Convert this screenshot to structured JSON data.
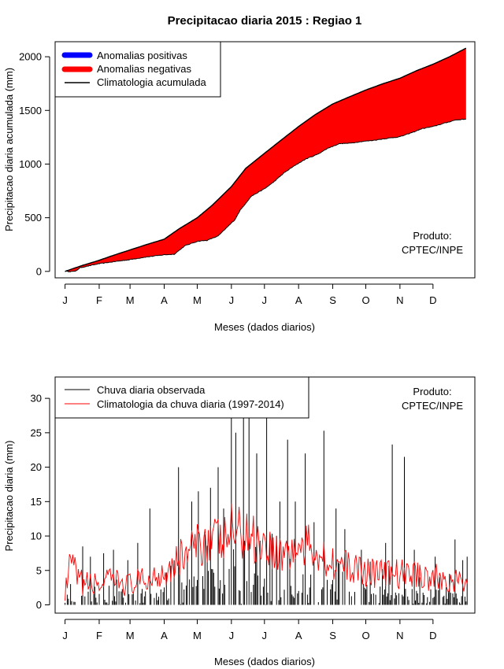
{
  "title": "Precipitacao diaria 2015 : Regiao 1",
  "top": {
    "ylabel": "Precipitacao diaria acumulada (mm)",
    "xlabel": "Meses (dados diarios)",
    "legend": {
      "positive": "Anomalias positivas",
      "negative": "Anomalias negativas",
      "clim": "Climatologia acumulada"
    },
    "credit_line1": "Produto:",
    "credit_line2": "CPTEC/INPE"
  },
  "bottom": {
    "ylabel": "Precipitacao diaria (mm)",
    "xlabel": "Meses (dados diarios)",
    "legend": {
      "obs": "Chuva diaria observada",
      "clim": "Climatologia da chuva diaria (1997-2014)"
    },
    "credit_line1": "Produto:",
    "credit_line2": "CPTEC/INPE"
  },
  "colors": {
    "positive": "#0000ff",
    "negative": "#ff0000",
    "clim_accum": "#000000",
    "obs_bars": "#000000",
    "clim_daily": "#ff0000"
  },
  "chart_data": [
    {
      "type": "area",
      "name": "accumulated",
      "title": "Precipitacao diaria 2015 : Regiao 1",
      "xlabel": "Meses (dados diarios)",
      "ylabel": "Precipitacao diaria acumulada (mm)",
      "x_unit": "day of year",
      "xlim": [
        -8,
        373
      ],
      "ylim": [
        -60,
        2140
      ],
      "yticks": [
        0,
        500,
        1000,
        1500,
        2000
      ],
      "month_ticks": [
        {
          "label": "J",
          "day": 1
        },
        {
          "label": "F",
          "day": 32
        },
        {
          "label": "M",
          "day": 60
        },
        {
          "label": "A",
          "day": 91
        },
        {
          "label": "M",
          "day": 121
        },
        {
          "label": "J",
          "day": 152
        },
        {
          "label": "J",
          "day": 182
        },
        {
          "label": "A",
          "day": 213
        },
        {
          "label": "S",
          "day": 244
        },
        {
          "label": "O",
          "day": 274
        },
        {
          "label": "N",
          "day": 305
        },
        {
          "label": "D",
          "day": 335
        }
      ],
      "climatology_accumulated_anchors": [
        [
          1,
          0
        ],
        [
          15,
          50
        ],
        [
          31,
          100
        ],
        [
          45,
          150
        ],
        [
          60,
          200
        ],
        [
          75,
          250
        ],
        [
          91,
          300
        ],
        [
          105,
          400
        ],
        [
          121,
          500
        ],
        [
          135,
          620
        ],
        [
          152,
          790
        ],
        [
          165,
          960
        ],
        [
          182,
          1100
        ],
        [
          198,
          1230
        ],
        [
          213,
          1350
        ],
        [
          228,
          1460
        ],
        [
          244,
          1560
        ],
        [
          260,
          1630
        ],
        [
          274,
          1690
        ],
        [
          290,
          1750
        ],
        [
          305,
          1800
        ],
        [
          320,
          1870
        ],
        [
          335,
          1930
        ],
        [
          350,
          2000
        ],
        [
          365,
          2080
        ]
      ],
      "observed_accumulated_anchors": [
        [
          1,
          0
        ],
        [
          10,
          0
        ],
        [
          15,
          35
        ],
        [
          31,
          70
        ],
        [
          45,
          90
        ],
        [
          60,
          110
        ],
        [
          75,
          135
        ],
        [
          91,
          155
        ],
        [
          100,
          160
        ],
        [
          110,
          240
        ],
        [
          121,
          280
        ],
        [
          130,
          290
        ],
        [
          140,
          330
        ],
        [
          150,
          430
        ],
        [
          155,
          480
        ],
        [
          160,
          570
        ],
        [
          170,
          700
        ],
        [
          182,
          770
        ],
        [
          190,
          830
        ],
        [
          200,
          920
        ],
        [
          210,
          990
        ],
        [
          220,
          1050
        ],
        [
          230,
          1090
        ],
        [
          240,
          1150
        ],
        [
          250,
          1190
        ],
        [
          260,
          1195
        ],
        [
          270,
          1210
        ],
        [
          280,
          1220
        ],
        [
          290,
          1235
        ],
        [
          305,
          1255
        ],
        [
          315,
          1290
        ],
        [
          325,
          1330
        ],
        [
          335,
          1350
        ],
        [
          345,
          1380
        ],
        [
          355,
          1410
        ],
        [
          365,
          1420
        ]
      ],
      "series": [
        {
          "name": "Anomalias positivas",
          "color": "#0000ff"
        },
        {
          "name": "Anomalias negativas",
          "color": "#ff0000"
        },
        {
          "name": "Climatologia acumulada",
          "color": "#000000"
        }
      ]
    },
    {
      "type": "bar",
      "name": "daily",
      "xlabel": "Meses (dados diarios)",
      "ylabel": "Precipitacao diaria (mm)",
      "x_unit": "day of year",
      "xlim": [
        -8,
        373
      ],
      "ylim": [
        -1.2,
        33.1
      ],
      "yticks": [
        0,
        5,
        10,
        15,
        20,
        25,
        30
      ],
      "month_ticks": [
        {
          "label": "J",
          "day": 1
        },
        {
          "label": "F",
          "day": 32
        },
        {
          "label": "M",
          "day": 60
        },
        {
          "label": "A",
          "day": 91
        },
        {
          "label": "M",
          "day": 121
        },
        {
          "label": "J",
          "day": 152
        },
        {
          "label": "J",
          "day": 182
        },
        {
          "label": "A",
          "day": 213
        },
        {
          "label": "S",
          "day": 244
        },
        {
          "label": "O",
          "day": 274
        },
        {
          "label": "N",
          "day": 305
        },
        {
          "label": "D",
          "day": 335
        }
      ],
      "observed_peaks": [
        [
          17,
          8.5
        ],
        [
          24,
          7
        ],
        [
          36,
          7.5
        ],
        [
          45,
          8
        ],
        [
          58,
          6.5
        ],
        [
          67,
          9
        ],
        [
          78,
          14
        ],
        [
          104,
          20
        ],
        [
          112,
          7
        ],
        [
          116,
          15
        ],
        [
          122,
          16.5
        ],
        [
          133,
          17
        ],
        [
          140,
          20
        ],
        [
          145,
          14
        ],
        [
          152,
          27.5
        ],
        [
          156,
          25
        ],
        [
          163,
          27.5
        ],
        [
          168,
          27.5
        ],
        [
          175,
          22
        ],
        [
          184,
          27.5
        ],
        [
          196,
          15
        ],
        [
          203,
          24
        ],
        [
          210,
          15
        ],
        [
          219,
          22
        ],
        [
          227,
          12
        ],
        [
          236,
          25.3
        ],
        [
          247,
          14
        ],
        [
          255,
          11
        ],
        [
          270,
          8
        ],
        [
          292,
          9
        ],
        [
          298,
          23.3
        ],
        [
          309,
          21.5
        ],
        [
          318,
          8
        ],
        [
          323,
          4
        ],
        [
          337,
          7
        ],
        [
          341,
          4
        ],
        [
          350,
          4.5
        ],
        [
          355,
          9.5
        ],
        [
          362,
          6.5
        ],
        [
          366,
          7
        ]
      ],
      "climatology_daily_anchors": [
        [
          1,
          1.5
        ],
        [
          5,
          5
        ],
        [
          8,
          6
        ],
        [
          12,
          3.5
        ],
        [
          20,
          3
        ],
        [
          31,
          3
        ],
        [
          45,
          3.5
        ],
        [
          60,
          3
        ],
        [
          75,
          3.5
        ],
        [
          91,
          5
        ],
        [
          100,
          6
        ],
        [
          110,
          7.5
        ],
        [
          121,
          8.5
        ],
        [
          131,
          10
        ],
        [
          145,
          9
        ],
        [
          152,
          11
        ],
        [
          160,
          10.5
        ],
        [
          170,
          10
        ],
        [
          182,
          9
        ],
        [
          195,
          7.5
        ],
        [
          213,
          8
        ],
        [
          225,
          8.5
        ],
        [
          235,
          7
        ],
        [
          244,
          6.5
        ],
        [
          255,
          5.5
        ],
        [
          274,
          5
        ],
        [
          290,
          4.5
        ],
        [
          305,
          4.5
        ],
        [
          320,
          4.5
        ],
        [
          335,
          4
        ],
        [
          350,
          3.5
        ],
        [
          365,
          3
        ]
      ],
      "series": [
        {
          "name": "Chuva diaria observada",
          "color": "#000000"
        },
        {
          "name": "Climatologia da chuva diaria (1997-2014)",
          "color": "#ff0000"
        }
      ]
    }
  ]
}
